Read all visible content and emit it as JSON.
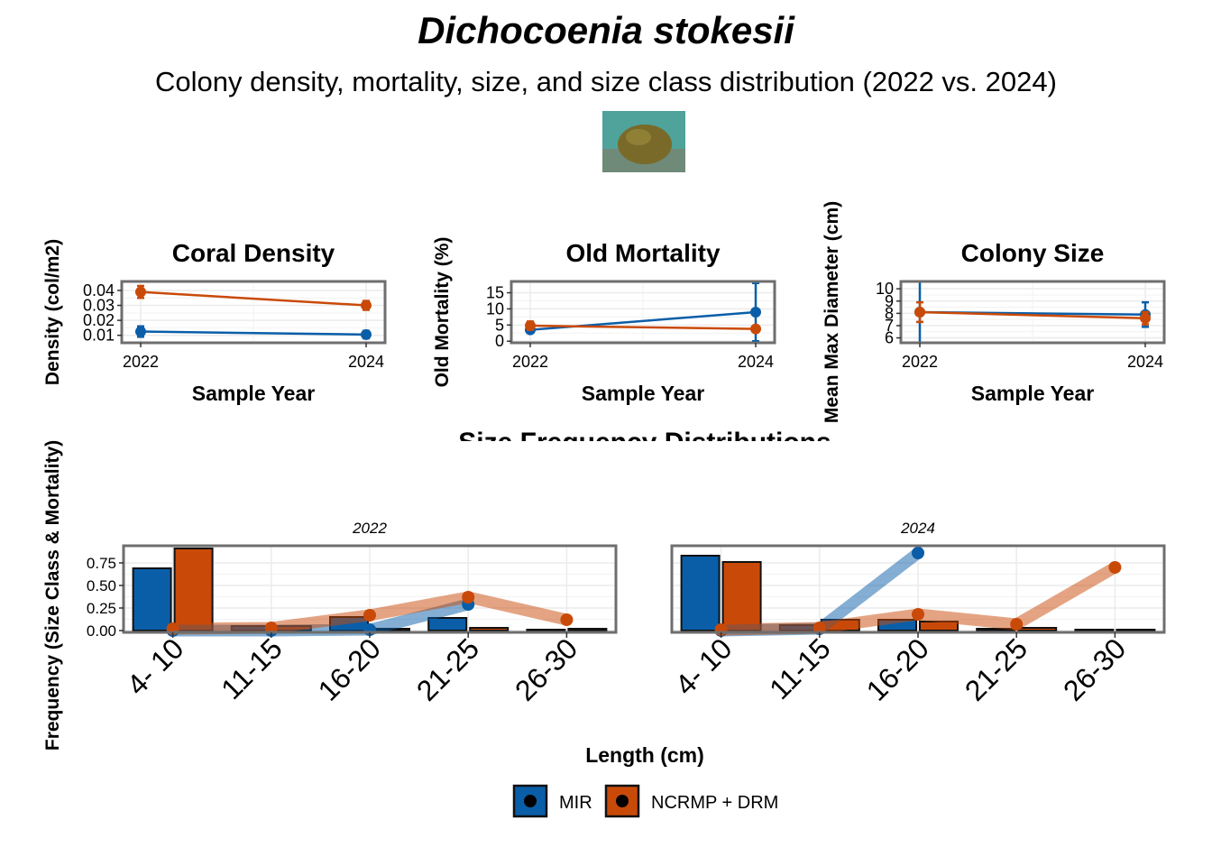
{
  "title": "Dichocoenia stokesii",
  "subtitle": "Colony density, mortality, size, and size class distribution (2022 vs. 2024)",
  "photo": {
    "colors": {
      "water": "#4fa39a",
      "coral": "#7a6a2a"
    }
  },
  "colors": {
    "MIR": "#0a5ea8",
    "NCRMP": "#c94a08",
    "grid": "#ebebeb",
    "frame": "#6e6e6e"
  },
  "legend": {
    "position": "bottom",
    "items": [
      {
        "label": "MIR",
        "color": "#0a5ea8"
      },
      {
        "label": "NCRMP + DRM",
        "color": "#c94a08"
      }
    ]
  },
  "chart_data": [
    {
      "type": "line",
      "title": "Coral Density",
      "xlabel": "Sample Year",
      "ylabel": "Density (col/m2)",
      "x": [
        2022,
        2024
      ],
      "ylim": [
        0.005,
        0.046
      ],
      "yticks": [
        0.01,
        0.02,
        0.03,
        0.04
      ],
      "ytick_labels": [
        "0.01",
        "0.02",
        "0.03",
        "0.04"
      ],
      "series": [
        {
          "name": "MIR",
          "values": [
            0.0125,
            0.0105
          ],
          "err": [
            0.0035,
            0.0025
          ]
        },
        {
          "name": "NCRMP + DRM",
          "values": [
            0.039,
            0.03
          ],
          "err": [
            0.004,
            0.003
          ]
        }
      ]
    },
    {
      "type": "line",
      "title": "Old Mortality",
      "xlabel": "Sample Year",
      "ylabel": "Old Mortality (%)",
      "x": [
        2022,
        2024
      ],
      "ylim": [
        -0.5,
        18.5
      ],
      "yticks": [
        0,
        5,
        10,
        15
      ],
      "ytick_labels": [
        "0",
        "5",
        "10",
        "15"
      ],
      "series": [
        {
          "name": "MIR",
          "values": [
            3.5,
            9.0
          ],
          "err": [
            0.8,
            9.0
          ]
        },
        {
          "name": "NCRMP + DRM",
          "values": [
            4.8,
            3.8
          ],
          "err": [
            1.3,
            0.8
          ]
        }
      ]
    },
    {
      "type": "line",
      "title": "Colony Size",
      "xlabel": "Sample Year",
      "ylabel": "Mean Max Diameter (cm)",
      "x": [
        2022,
        2024
      ],
      "ylim": [
        5.6,
        10.6
      ],
      "yticks": [
        6,
        7,
        8,
        9,
        10
      ],
      "ytick_labels": [
        "6",
        "7",
        "8",
        "9",
        "10"
      ],
      "series": [
        {
          "name": "MIR",
          "values": [
            8.1,
            7.9
          ],
          "err": [
            2.5,
            1.0
          ]
        },
        {
          "name": "NCRMP + DRM",
          "values": [
            8.1,
            7.6
          ],
          "err": [
            0.8,
            0.5
          ]
        }
      ]
    },
    {
      "type": "bar",
      "title": "Size Frequency Distributions",
      "xlabel": "Length (cm)",
      "ylabel": "Frequency (Size Class & Mortality)",
      "categories": [
        "4- 10",
        "11-15",
        "16-20",
        "21-25",
        "26-30"
      ],
      "ylim": [
        -0.02,
        0.94
      ],
      "yticks": [
        0.0,
        0.25,
        0.5,
        0.75
      ],
      "ytick_labels": [
        "0.00",
        "0.25",
        "0.50",
        "0.75"
      ],
      "facets": [
        {
          "label": "2022",
          "size_class": [
            {
              "name": "MIR",
              "values": [
                0.69,
                0.05,
                0.15,
                0.14,
                0.01
              ]
            },
            {
              "name": "NCRMP + DRM",
              "values": [
                0.91,
                0.05,
                0.02,
                0.03,
                0.02
              ]
            }
          ],
          "mortality": [
            {
              "name": "MIR",
              "values": [
                0.0,
                0.0,
                0.01,
                0.29,
                null
              ]
            },
            {
              "name": "NCRMP + DRM",
              "values": [
                0.02,
                0.03,
                0.17,
                0.37,
                0.12
              ]
            }
          ]
        },
        {
          "label": "2024",
          "size_class": [
            {
              "name": "MIR",
              "values": [
                0.83,
                0.06,
                0.12,
                0.02,
                0.01
              ]
            },
            {
              "name": "NCRMP + DRM",
              "values": [
                0.76,
                0.12,
                0.1,
                0.03,
                0.01
              ]
            }
          ],
          "mortality": [
            {
              "name": "MIR",
              "values": [
                0.0,
                0.02,
                0.86,
                null,
                null
              ]
            },
            {
              "name": "NCRMP + DRM",
              "values": [
                0.01,
                0.03,
                0.18,
                0.07,
                0.7
              ]
            }
          ]
        }
      ]
    }
  ]
}
